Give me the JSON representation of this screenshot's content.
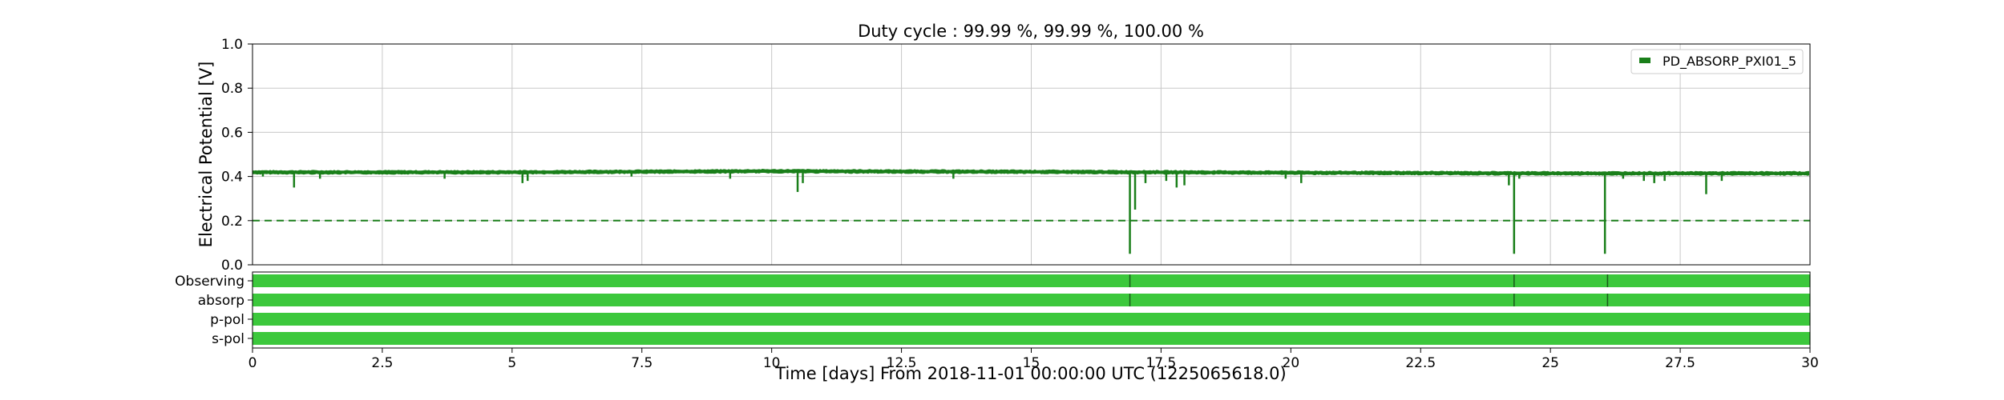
{
  "chart_data": {
    "type": "line",
    "title": "Duty cycle : 99.99 %, 99.99 %, 100.00 %",
    "xlabel": "Time [days] From 2018-11-01 00:00:00 UTC (1225065618.0)",
    "ylabel": "Electrical Potential [V]",
    "xlim": [
      0,
      30
    ],
    "ylim": [
      0,
      1.0
    ],
    "grid": true,
    "legend_position": "top-right",
    "x_ticks": [
      "0",
      "2.5",
      "5",
      "7.5",
      "10",
      "12.5",
      "15",
      "17.5",
      "20",
      "22.5",
      "25",
      "27.5",
      "30"
    ],
    "y_ticks": [
      "0.0",
      "0.2",
      "0.4",
      "0.6",
      "0.8",
      "1.0"
    ],
    "series": [
      {
        "name": "PD_ABSORP_PXI01_5",
        "color": "#1a7f1a",
        "baseline": [
          [
            0,
            0.42
          ],
          [
            5,
            0.42
          ],
          [
            10,
            0.425
          ],
          [
            15,
            0.422
          ],
          [
            20,
            0.418
          ],
          [
            25,
            0.415
          ],
          [
            30,
            0.415
          ]
        ],
        "dips": [
          [
            0.2,
            0.4
          ],
          [
            0.8,
            0.35
          ],
          [
            1.3,
            0.39
          ],
          [
            3.7,
            0.39
          ],
          [
            5.2,
            0.37
          ],
          [
            5.3,
            0.38
          ],
          [
            7.3,
            0.4
          ],
          [
            9.2,
            0.39
          ],
          [
            10.5,
            0.33
          ],
          [
            10.6,
            0.37
          ],
          [
            13.5,
            0.39
          ],
          [
            16.9,
            0.05
          ],
          [
            17.0,
            0.25
          ],
          [
            17.2,
            0.37
          ],
          [
            17.6,
            0.38
          ],
          [
            17.8,
            0.35
          ],
          [
            17.95,
            0.36
          ],
          [
            19.9,
            0.39
          ],
          [
            20.2,
            0.37
          ],
          [
            24.2,
            0.36
          ],
          [
            24.3,
            0.05
          ],
          [
            24.4,
            0.39
          ],
          [
            26.05,
            0.05
          ],
          [
            26.4,
            0.39
          ],
          [
            26.8,
            0.38
          ],
          [
            27.0,
            0.37
          ],
          [
            27.2,
            0.38
          ],
          [
            28.0,
            0.32
          ],
          [
            28.3,
            0.38
          ]
        ]
      }
    ],
    "threshold": {
      "value": 0.2,
      "color": "#1a7f1a",
      "style": "dashed"
    },
    "segments": [
      {
        "label": "Observing",
        "color": "#3cc83c",
        "gaps": [
          16.9,
          24.3,
          26.1
        ]
      },
      {
        "label": "absorp",
        "color": "#3cc83c",
        "gaps": [
          16.9,
          24.3,
          26.1
        ]
      },
      {
        "label": "p-pol",
        "color": "#3cc83c",
        "gaps": []
      },
      {
        "label": "s-pol",
        "color": "#3cc83c",
        "gaps": []
      }
    ]
  }
}
